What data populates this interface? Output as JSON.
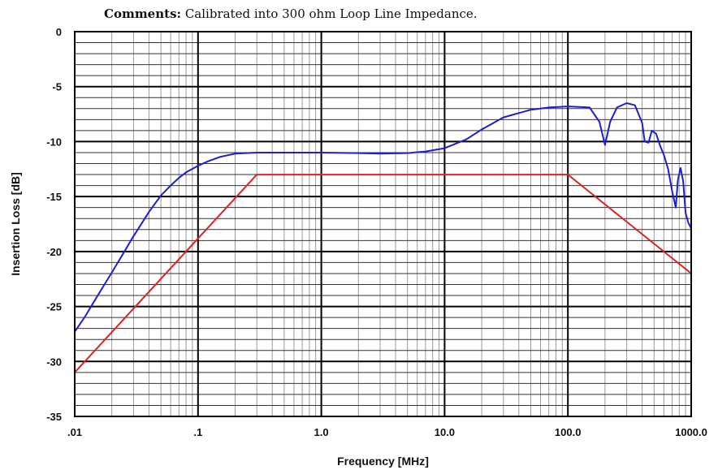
{
  "comments": {
    "label": "Comments:",
    "text": "Calibrated into 300 ohm Loop Line Impedance."
  },
  "chart_data": {
    "type": "line",
    "xlabel": "Frequency [MHz]",
    "ylabel": "Insertion Loss  [dB]",
    "xscale": "log",
    "xlim": [
      0.01,
      1000
    ],
    "ylim": [
      -35,
      0
    ],
    "x_tick_values": [
      0.01,
      0.1,
      1,
      10,
      100,
      1000
    ],
    "x_tick_labels": [
      ".01",
      ".1",
      "1.0",
      "10.0",
      "100.0",
      "1000.0"
    ],
    "y_tick_values": [
      0,
      -5,
      -10,
      -15,
      -20,
      -25,
      -30,
      -35
    ],
    "y_tick_labels": [
      "0",
      "-5",
      "-10",
      "-15",
      "-20",
      "-25",
      "-30",
      "-35"
    ],
    "grid": true,
    "series": [
      {
        "color": "#1f1fcc",
        "x": [
          0.01,
          0.012,
          0.015,
          0.02,
          0.025,
          0.03,
          0.04,
          0.05,
          0.06,
          0.07,
          0.08,
          0.1,
          0.12,
          0.15,
          0.2,
          0.3,
          0.5,
          1,
          2,
          3,
          5,
          7,
          10,
          15,
          20,
          30,
          50,
          70,
          100,
          150,
          180,
          200,
          220,
          250,
          300,
          350,
          400,
          420,
          450,
          480,
          520,
          560,
          600,
          650,
          700,
          750,
          780,
          820,
          860,
          900,
          950,
          1000
        ],
        "y": [
          -27.3,
          -26,
          -24.2,
          -21.9,
          -20.1,
          -18.6,
          -16.4,
          -14.9,
          -14.0,
          -13.3,
          -12.8,
          -12.2,
          -11.8,
          -11.4,
          -11.1,
          -11.0,
          -11.0,
          -11.0,
          -11.05,
          -11.1,
          -11.05,
          -10.9,
          -10.6,
          -9.8,
          -8.9,
          -7.8,
          -7.1,
          -6.9,
          -6.8,
          -6.9,
          -8.2,
          -10.3,
          -8.2,
          -6.9,
          -6.5,
          -6.7,
          -8.3,
          -10.0,
          -10.1,
          -9.0,
          -9.3,
          -10.4,
          -11.2,
          -12.5,
          -14.5,
          -16.0,
          -13.5,
          -12.4,
          -13.6,
          -16.5,
          -17.4,
          -17.9
        ]
      },
      {
        "color": "#dd2222",
        "x": [
          0.01,
          0.3,
          100,
          1000
        ],
        "y": [
          -31,
          -13,
          -13,
          -22
        ]
      }
    ]
  }
}
